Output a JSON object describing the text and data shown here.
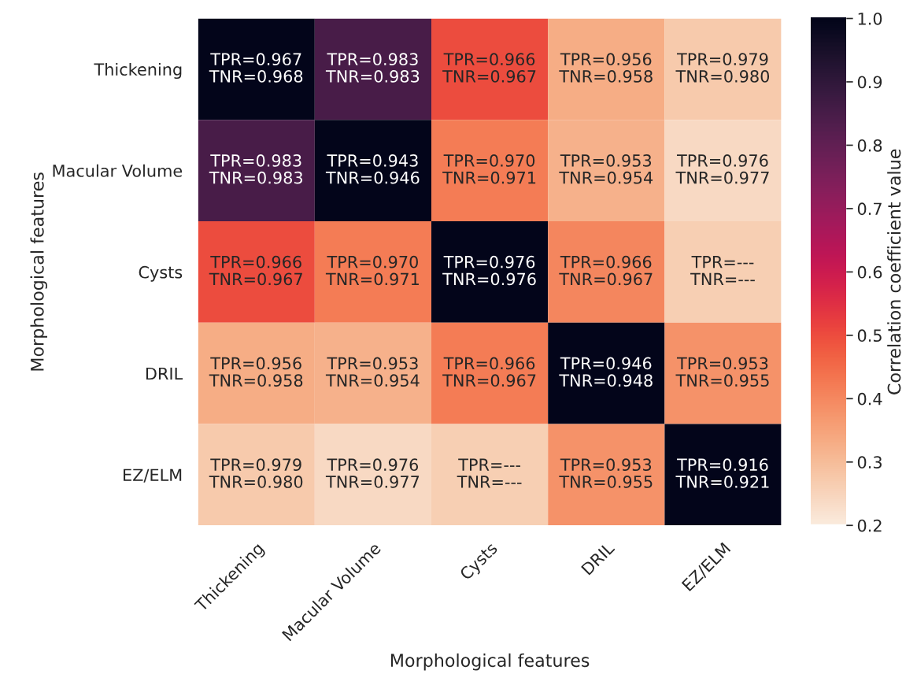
{
  "chart_data": {
    "type": "heatmap",
    "xlabel": "Morphological features",
    "ylabel": "Morphological features",
    "clabel": "Correlation coefficient value",
    "categories": [
      "Thickening",
      "Macular Volume",
      "Cysts",
      "DRIL",
      "EZ/ELM"
    ],
    "y_categories": [
      "Thickening",
      "Macular Volume",
      "Cysts",
      "DRIL",
      "EZ/ELM"
    ],
    "cells": [
      [
        1.0,
        0.85,
        0.5,
        0.33,
        0.27
      ],
      [
        0.85,
        1.0,
        0.42,
        0.32,
        0.24
      ],
      [
        0.5,
        0.42,
        1.0,
        0.4,
        0.26
      ],
      [
        0.33,
        0.32,
        0.42,
        1.0,
        0.38
      ],
      [
        0.27,
        0.24,
        0.26,
        0.38,
        1.0
      ]
    ],
    "cell_labels": [
      [
        "TPR=0.967\nTNR=0.968",
        "TPR=0.983\nTNR=0.983",
        "TPR=0.966\nTNR=0.967",
        "TPR=0.956\nTNR=0.958",
        "TPR=0.979\nTNR=0.980"
      ],
      [
        "TPR=0.983\nTNR=0.983",
        "TPR=0.943\nTNR=0.946",
        "TPR=0.970\nTNR=0.971",
        "TPR=0.953\nTNR=0.954",
        "TPR=0.976\nTNR=0.977"
      ],
      [
        "TPR=0.966\nTNR=0.967",
        "TPR=0.970\nTNR=0.971",
        "TPR=0.976\nTNR=0.976",
        "TPR=0.966\nTNR=0.967",
        "TPR=---\nTNR=---"
      ],
      [
        "TPR=0.956\nTNR=0.958",
        "TPR=0.953\nTNR=0.954",
        "TPR=0.966\nTNR=0.967",
        "TPR=0.946\nTNR=0.948",
        "TPR=0.953\nTNR=0.955"
      ],
      [
        "TPR=0.979\nTNR=0.980",
        "TPR=0.976\nTNR=0.977",
        "TPR=---\nTNR=---",
        "TPR=0.953\nTNR=0.955",
        "TPR=0.916\nTNR=0.921"
      ]
    ],
    "clim": [
      0.2,
      1.0
    ],
    "cticks": [
      0.2,
      0.3,
      0.4,
      0.5,
      0.6,
      0.7,
      0.8,
      0.9,
      {
        "value": 1,
        "label": "1.0"
      }
    ]
  }
}
